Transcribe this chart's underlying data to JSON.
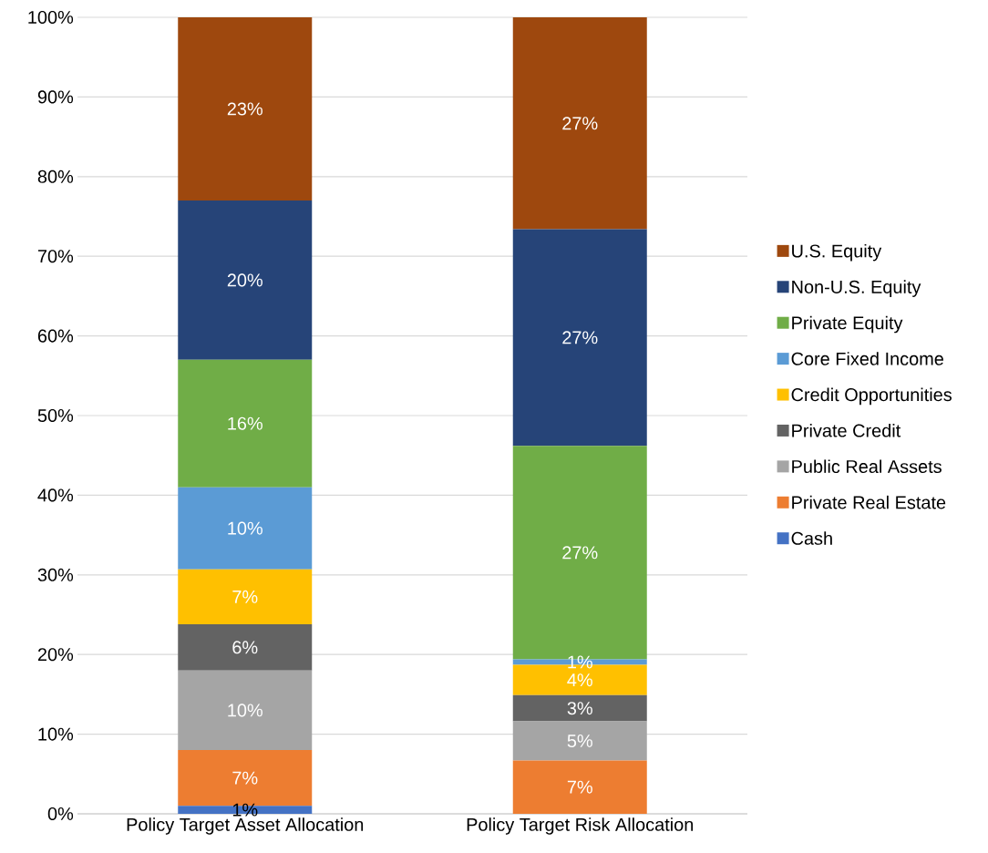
{
  "chart_data": {
    "type": "bar",
    "stacked": true,
    "categories": [
      "Policy Target Asset Allocation",
      "Policy Target Risk Allocation"
    ],
    "series": [
      {
        "name": "Cash",
        "color": "#4472c4",
        "values": [
          1,
          0
        ],
        "value_labels": [
          "1%",
          null
        ]
      },
      {
        "name": "Private Real Estate",
        "color": "#ed7d31",
        "values": [
          7,
          6.7
        ],
        "value_labels": [
          "7%",
          "7%"
        ]
      },
      {
        "name": "Public Real Assets",
        "color": "#a5a5a5",
        "values": [
          10,
          4.9
        ],
        "value_labels": [
          "10%",
          "5%"
        ]
      },
      {
        "name": "Private Credit",
        "color": "#636363",
        "values": [
          5.8,
          3.3
        ],
        "value_labels": [
          "6%",
          "3%"
        ]
      },
      {
        "name": "Credit Opportunities",
        "color": "#ffc000",
        "values": [
          6.9,
          3.8
        ],
        "value_labels": [
          "7%",
          "4%"
        ]
      },
      {
        "name": "Core Fixed Income",
        "color": "#5b9bd5",
        "values": [
          10.3,
          0.7
        ],
        "value_labels": [
          "10%",
          "1%"
        ]
      },
      {
        "name": "Private Equity",
        "color": "#70ad47",
        "values": [
          16,
          26.8
        ],
        "value_labels": [
          "16%",
          "27%"
        ]
      },
      {
        "name": "Non-U.S. Equity",
        "color": "#264478",
        "values": [
          20,
          27.2
        ],
        "value_labels": [
          "20%",
          "27%"
        ]
      },
      {
        "name": "U.S. Equity",
        "color": "#9e480e",
        "values": [
          23,
          26.6
        ],
        "value_labels": [
          "23%",
          "27%"
        ]
      }
    ],
    "ylim": [
      0,
      100
    ],
    "yticks": [
      {
        "value": 0,
        "label": "0%"
      },
      {
        "value": 10,
        "label": "10%"
      },
      {
        "value": 20,
        "label": "20%"
      },
      {
        "value": 30,
        "label": "30%"
      },
      {
        "value": 40,
        "label": "40%"
      },
      {
        "value": 50,
        "label": "50%"
      },
      {
        "value": 60,
        "label": "60%"
      },
      {
        "value": 70,
        "label": "70%"
      },
      {
        "value": 80,
        "label": "80%"
      },
      {
        "value": 90,
        "label": "90%"
      },
      {
        "value": 100,
        "label": "100%"
      }
    ],
    "grid": "y",
    "legend": "right"
  }
}
